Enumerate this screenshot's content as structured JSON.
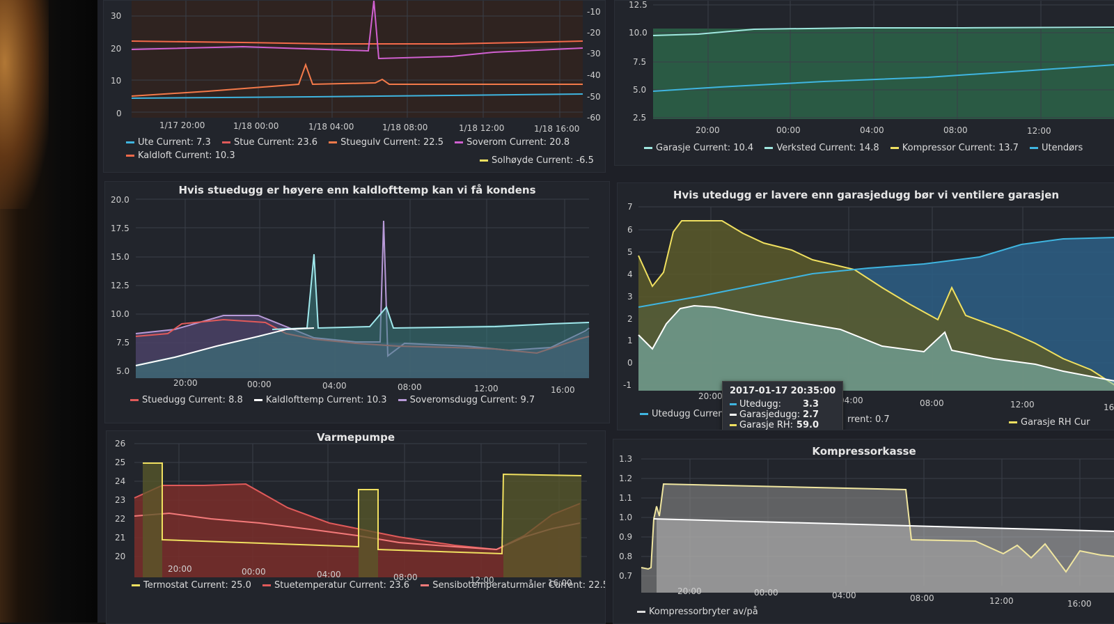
{
  "panels": {
    "temps": {
      "title": "",
      "y_left_ticks": [
        "30",
        "20",
        "10",
        "0"
      ],
      "y_right_ticks": [
        "-10",
        "-20",
        "-30",
        "-40",
        "-50",
        "-60"
      ],
      "x_ticks": [
        "1/17 20:00",
        "1/18 00:00",
        "1/18 04:00",
        "1/18 08:00",
        "1/18 12:00",
        "1/18 16:00"
      ],
      "legend": [
        {
          "name": "Ute",
          "current_label": "Current:",
          "current": "7.3",
          "color": "#3fb5e0"
        },
        {
          "name": "Stue",
          "current_label": "Current:",
          "current": "23.6",
          "color": "#e05a5a"
        },
        {
          "name": "Stuegulv",
          "current_label": "Current:",
          "current": "22.5",
          "color": "#f47a4a"
        },
        {
          "name": "Soverom",
          "current_label": "Current:",
          "current": "20.8",
          "color": "#d060d0"
        },
        {
          "name": "Kaldloft",
          "current_label": "Current:",
          "current": "10.3",
          "color": "#f46a4a"
        },
        {
          "name": "Solhøyde",
          "current_label": "Current:",
          "current": "-6.5",
          "color": "#f0e060"
        }
      ]
    },
    "garage": {
      "title": "",
      "y_ticks": [
        "12.5",
        "10.0",
        "7.5",
        "5.0",
        "2.5"
      ],
      "x_ticks": [
        "20:00",
        "00:00",
        "04:00",
        "08:00",
        "12:00"
      ],
      "legend": [
        {
          "name": "Garasje",
          "current_label": "Current:",
          "current": "10.4",
          "color": "#a0e8e0"
        },
        {
          "name": "Verksted",
          "current_label": "Current:",
          "current": "14.8",
          "color": "#a0e8e0"
        },
        {
          "name": "Kompressor",
          "current_label": "Current:",
          "current": "13.7",
          "color": "#f0e060"
        },
        {
          "name": "Utendørs",
          "current_label": "",
          "current": "",
          "color": "#3fb5e0"
        }
      ]
    },
    "dew": {
      "title": "Hvis stuedugg er høyere enn kaldlofttemp kan vi få kondens",
      "y_ticks": [
        "20.0",
        "17.5",
        "15.0",
        "12.5",
        "10.0",
        "7.5",
        "5.0"
      ],
      "x_ticks": [
        "20:00",
        "00:00",
        "04:00",
        "08:00",
        "12:00",
        "16:00"
      ],
      "legend": [
        {
          "name": "Stuedugg",
          "current_label": "Current:",
          "current": "8.8",
          "color": "#e05a5a"
        },
        {
          "name": "Kaldlofttemp",
          "current_label": "Current:",
          "current": "10.3",
          "color": "#ffffff"
        },
        {
          "name": "Soveromsdugg",
          "current_label": "Current:",
          "current": "9.7",
          "color": "#b89ad8"
        }
      ]
    },
    "vent": {
      "title": "Hvis utedugg er lavere enn garasjedugg bør vi ventilere garasjen",
      "y_ticks": [
        "7",
        "6",
        "5",
        "4",
        "3",
        "2",
        "1",
        "0",
        "-1"
      ],
      "x_ticks": [
        "20:00",
        "04:00",
        "08:00",
        "12:00",
        "16"
      ],
      "legend": [
        {
          "name": "Utedugg",
          "text": "Curren"
        },
        {
          "name": "",
          "text": "rrent: 0.7"
        },
        {
          "name": "Garasje RH",
          "text": "Cur"
        }
      ],
      "tooltip": {
        "time": "2017-01-17 20:35:00",
        "rows": [
          {
            "name": "Utedugg:",
            "value": "3.3",
            "color": "#3fb5e0"
          },
          {
            "name": "Garasjedugg:",
            "value": "2.7",
            "color": "#ffffff"
          },
          {
            "name": "Garasje RH:",
            "value": "59.0",
            "color": "#f0e060"
          }
        ]
      }
    },
    "heatpump": {
      "title": "Varmepumpe",
      "y_ticks": [
        "26",
        "25",
        "24",
        "23",
        "22",
        "21",
        "20"
      ],
      "x_ticks": [
        "20:00",
        "00:00",
        "04:00",
        "08:00",
        "12:00",
        "16:00"
      ],
      "legend": [
        {
          "name": "Termostat",
          "current_label": "Current:",
          "current": "25.0",
          "color": "#f0e060"
        },
        {
          "name": "Stuetemperatur",
          "current_label": "Current:",
          "current": "23.6",
          "color": "#e05a5a"
        },
        {
          "name": "Sensibotemperaturmåler",
          "current_label": "Current:",
          "current": "22.5",
          "color": "#f47a7a"
        }
      ]
    },
    "compressor": {
      "title": "Kompressorkasse",
      "y_ticks": [
        "1.3",
        "1.2",
        "1.1",
        "1.0",
        "0.9",
        "0.8",
        "0.7"
      ],
      "x_ticks": [
        "20:00",
        "00:00",
        "04:00",
        "08:00",
        "12:00",
        "16:00"
      ],
      "legend": [
        {
          "name": "Kompressorbryter av/på",
          "color": "#dddddd"
        }
      ]
    }
  },
  "colors": {
    "background": "#1e2027",
    "panel": "#22252c",
    "grid": "#3a3f48"
  }
}
